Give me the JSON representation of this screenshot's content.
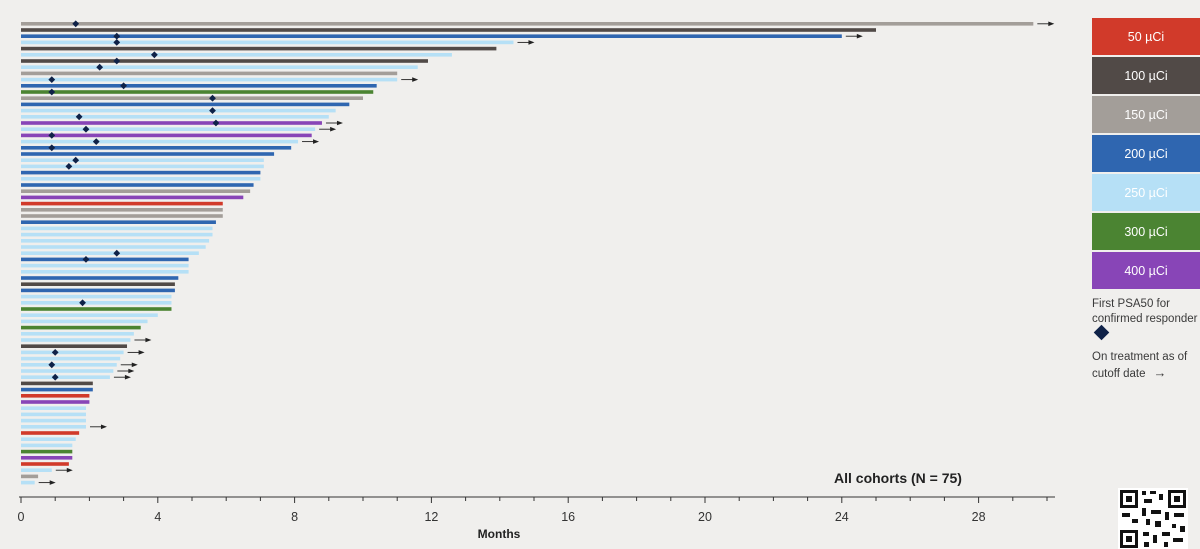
{
  "chart_data": {
    "type": "swimmer",
    "xlabel": "Months",
    "xlim": [
      0,
      30.3
    ],
    "xticks": [
      0,
      4,
      8,
      12,
      16,
      20,
      24,
      28
    ],
    "annotation": "All cohorts (N = 75)",
    "legend": [
      {
        "label": "50 µCi",
        "color": "#d13a2a"
      },
      {
        "label": "100 µCi",
        "color": "#514a47"
      },
      {
        "label": "150 µCi",
        "color": "#a39e99"
      },
      {
        "label": "200 µCi",
        "color": "#2f66b0"
      },
      {
        "label": "250 µCi",
        "color": "#b6e0f6"
      },
      {
        "label": "300 µCi",
        "color": "#4b8432"
      },
      {
        "label": "400 µCi",
        "color": "#8845b7"
      }
    ],
    "marker_legend": "First PSA50 for confirmed responder",
    "arrow_legend": "On treatment as of cutoff date",
    "patients": [
      {
        "cohort": "150",
        "months": 29.6,
        "psa50": 1.6,
        "ongoing": true
      },
      {
        "cohort": "100",
        "months": 25.0,
        "psa50": null,
        "ongoing": false
      },
      {
        "cohort": "200",
        "months": 24.0,
        "psa50": 2.8,
        "ongoing": true
      },
      {
        "cohort": "250",
        "months": 14.4,
        "psa50": 2.8,
        "ongoing": true
      },
      {
        "cohort": "100",
        "months": 13.9,
        "psa50": null,
        "ongoing": false
      },
      {
        "cohort": "250",
        "months": 12.6,
        "psa50": 3.9,
        "ongoing": false
      },
      {
        "cohort": "100",
        "months": 11.9,
        "psa50": 2.8,
        "ongoing": false
      },
      {
        "cohort": "250",
        "months": 11.6,
        "psa50": 2.3,
        "ongoing": false
      },
      {
        "cohort": "150",
        "months": 11.0,
        "psa50": null,
        "ongoing": false
      },
      {
        "cohort": "250",
        "months": 11.0,
        "psa50": 0.9,
        "ongoing": true
      },
      {
        "cohort": "200",
        "months": 10.4,
        "psa50": 3.0,
        "ongoing": false
      },
      {
        "cohort": "300",
        "months": 10.3,
        "psa50": 0.9,
        "ongoing": false
      },
      {
        "cohort": "150",
        "months": 10.0,
        "psa50": 5.6,
        "ongoing": false
      },
      {
        "cohort": "200",
        "months": 9.6,
        "psa50": null,
        "ongoing": false
      },
      {
        "cohort": "250",
        "months": 9.2,
        "psa50": 5.6,
        "ongoing": false
      },
      {
        "cohort": "250",
        "months": 9.0,
        "psa50": 1.7,
        "ongoing": false
      },
      {
        "cohort": "400",
        "months": 8.8,
        "psa50": 5.7,
        "ongoing": true
      },
      {
        "cohort": "250",
        "months": 8.6,
        "psa50": 1.9,
        "ongoing": true
      },
      {
        "cohort": "400",
        "months": 8.5,
        "psa50": 0.9,
        "ongoing": false
      },
      {
        "cohort": "250",
        "months": 8.1,
        "psa50": 2.2,
        "ongoing": true
      },
      {
        "cohort": "200",
        "months": 7.9,
        "psa50": 0.9,
        "ongoing": false
      },
      {
        "cohort": "200",
        "months": 7.4,
        "psa50": null,
        "ongoing": false
      },
      {
        "cohort": "250",
        "months": 7.1,
        "psa50": 1.6,
        "ongoing": false
      },
      {
        "cohort": "250",
        "months": 7.1,
        "psa50": 1.4,
        "ongoing": false
      },
      {
        "cohort": "200",
        "months": 7.0,
        "psa50": null,
        "ongoing": false
      },
      {
        "cohort": "250",
        "months": 7.0,
        "psa50": null,
        "ongoing": false
      },
      {
        "cohort": "200",
        "months": 6.8,
        "psa50": null,
        "ongoing": false
      },
      {
        "cohort": "150",
        "months": 6.7,
        "psa50": null,
        "ongoing": false
      },
      {
        "cohort": "400",
        "months": 6.5,
        "psa50": null,
        "ongoing": false
      },
      {
        "cohort": "50",
        "months": 5.9,
        "psa50": null,
        "ongoing": false
      },
      {
        "cohort": "150",
        "months": 5.9,
        "psa50": null,
        "ongoing": false
      },
      {
        "cohort": "150",
        "months": 5.9,
        "psa50": null,
        "ongoing": false
      },
      {
        "cohort": "200",
        "months": 5.7,
        "psa50": null,
        "ongoing": false
      },
      {
        "cohort": "250",
        "months": 5.6,
        "psa50": null,
        "ongoing": false
      },
      {
        "cohort": "250",
        "months": 5.6,
        "psa50": null,
        "ongoing": false
      },
      {
        "cohort": "250",
        "months": 5.5,
        "psa50": null,
        "ongoing": false
      },
      {
        "cohort": "250",
        "months": 5.4,
        "psa50": null,
        "ongoing": false
      },
      {
        "cohort": "250",
        "months": 5.2,
        "psa50": 2.8,
        "ongoing": false
      },
      {
        "cohort": "200",
        "months": 4.9,
        "psa50": 1.9,
        "ongoing": false
      },
      {
        "cohort": "250",
        "months": 4.9,
        "psa50": null,
        "ongoing": false
      },
      {
        "cohort": "250",
        "months": 4.9,
        "psa50": null,
        "ongoing": false
      },
      {
        "cohort": "200",
        "months": 4.6,
        "psa50": null,
        "ongoing": false
      },
      {
        "cohort": "100",
        "months": 4.5,
        "psa50": null,
        "ongoing": false
      },
      {
        "cohort": "200",
        "months": 4.5,
        "psa50": null,
        "ongoing": false
      },
      {
        "cohort": "250",
        "months": 4.4,
        "psa50": null,
        "ongoing": false
      },
      {
        "cohort": "250",
        "months": 4.4,
        "psa50": 1.8,
        "ongoing": false
      },
      {
        "cohort": "300",
        "months": 4.4,
        "psa50": null,
        "ongoing": false
      },
      {
        "cohort": "250",
        "months": 4.0,
        "psa50": null,
        "ongoing": false
      },
      {
        "cohort": "250",
        "months": 3.7,
        "psa50": null,
        "ongoing": false
      },
      {
        "cohort": "300",
        "months": 3.5,
        "psa50": null,
        "ongoing": false
      },
      {
        "cohort": "250",
        "months": 3.3,
        "psa50": null,
        "ongoing": false
      },
      {
        "cohort": "250",
        "months": 3.2,
        "psa50": null,
        "ongoing": true
      },
      {
        "cohort": "100",
        "months": 3.1,
        "psa50": null,
        "ongoing": false
      },
      {
        "cohort": "250",
        "months": 3.0,
        "psa50": 1.0,
        "ongoing": true
      },
      {
        "cohort": "250",
        "months": 2.9,
        "psa50": null,
        "ongoing": false
      },
      {
        "cohort": "250",
        "months": 2.8,
        "psa50": 0.9,
        "ongoing": true
      },
      {
        "cohort": "250",
        "months": 2.7,
        "psa50": null,
        "ongoing": true
      },
      {
        "cohort": "250",
        "months": 2.6,
        "psa50": 1.0,
        "ongoing": true
      },
      {
        "cohort": "100",
        "months": 2.1,
        "psa50": null,
        "ongoing": false
      },
      {
        "cohort": "200",
        "months": 2.1,
        "psa50": null,
        "ongoing": false
      },
      {
        "cohort": "50",
        "months": 2.0,
        "psa50": null,
        "ongoing": false
      },
      {
        "cohort": "400",
        "months": 2.0,
        "psa50": null,
        "ongoing": false
      },
      {
        "cohort": "250",
        "months": 1.9,
        "psa50": null,
        "ongoing": false
      },
      {
        "cohort": "250",
        "months": 1.9,
        "psa50": null,
        "ongoing": false
      },
      {
        "cohort": "250",
        "months": 1.9,
        "psa50": null,
        "ongoing": false
      },
      {
        "cohort": "250",
        "months": 1.9,
        "psa50": null,
        "ongoing": true
      },
      {
        "cohort": "50",
        "months": 1.7,
        "psa50": null,
        "ongoing": false
      },
      {
        "cohort": "250",
        "months": 1.6,
        "psa50": null,
        "ongoing": false
      },
      {
        "cohort": "250",
        "months": 1.5,
        "psa50": null,
        "ongoing": false
      },
      {
        "cohort": "300",
        "months": 1.5,
        "psa50": null,
        "ongoing": false
      },
      {
        "cohort": "400",
        "months": 1.5,
        "psa50": null,
        "ongoing": false
      },
      {
        "cohort": "50",
        "months": 1.4,
        "psa50": null,
        "ongoing": false
      },
      {
        "cohort": "250",
        "months": 0.9,
        "psa50": null,
        "ongoing": true
      },
      {
        "cohort": "150",
        "months": 0.5,
        "psa50": null,
        "ongoing": false
      },
      {
        "cohort": "250",
        "months": 0.4,
        "psa50": null,
        "ongoing": true
      }
    ]
  }
}
